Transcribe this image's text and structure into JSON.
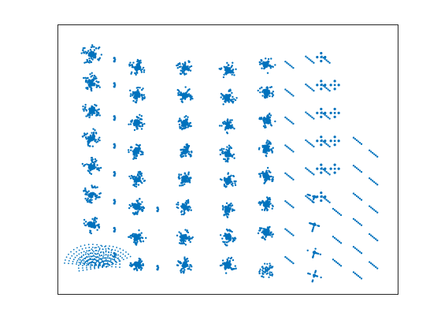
{
  "chart_data": {
    "type": "scatter",
    "title": "",
    "xlabel": "",
    "ylabel": "",
    "grid": false,
    "legend": "none",
    "marker_color": "#0072BD",
    "box_color": "#262626",
    "background": "#ffffff",
    "xlim": [
      0,
      100
    ],
    "ylim": [
      0,
      100
    ],
    "xticks": [],
    "yticks": [],
    "description_free": true,
    "clusters": [
      {
        "x": 10,
        "y": 92,
        "kind": "cross",
        "size": 1.2
      },
      {
        "x": 10,
        "y": 81,
        "kind": "cross",
        "size": 1.0
      },
      {
        "x": 10,
        "y": 70,
        "kind": "cross",
        "size": 1.0
      },
      {
        "x": 10,
        "y": 59,
        "kind": "cross",
        "size": 1.0
      },
      {
        "x": 10,
        "y": 48,
        "kind": "cross",
        "size": 1.0
      },
      {
        "x": 10,
        "y": 37,
        "kind": "cross",
        "size": 1.0
      },
      {
        "x": 10,
        "y": 25,
        "kind": "cross",
        "size": 1.0
      },
      {
        "x": 13,
        "y": 9,
        "kind": "fan",
        "size": 1.6
      },
      {
        "x": 20,
        "y": 90,
        "kind": "pair",
        "size": 0.5
      },
      {
        "x": 20,
        "y": 80,
        "kind": "pair",
        "size": 0.5
      },
      {
        "x": 20,
        "y": 67,
        "kind": "pair",
        "size": 0.5
      },
      {
        "x": 20,
        "y": 56,
        "kind": "pair",
        "size": 0.5
      },
      {
        "x": 20,
        "y": 45,
        "kind": "pair",
        "size": 0.5
      },
      {
        "x": 20,
        "y": 34,
        "kind": "pair",
        "size": 0.5
      },
      {
        "x": 20,
        "y": 23,
        "kind": "pair",
        "size": 0.5
      },
      {
        "x": 20,
        "y": 13,
        "kind": "pair",
        "size": 0.5
      },
      {
        "x": 30,
        "y": 87,
        "kind": "cross",
        "size": 0.9
      },
      {
        "x": 30,
        "y": 76,
        "kind": "cross",
        "size": 0.9
      },
      {
        "x": 30,
        "y": 65,
        "kind": "cross",
        "size": 0.9
      },
      {
        "x": 30,
        "y": 54,
        "kind": "cross",
        "size": 0.9
      },
      {
        "x": 30,
        "y": 43,
        "kind": "cross",
        "size": 0.9
      },
      {
        "x": 30,
        "y": 32,
        "kind": "cross",
        "size": 0.9
      },
      {
        "x": 30,
        "y": 20,
        "kind": "cross",
        "size": 0.9
      },
      {
        "x": 30,
        "y": 9,
        "kind": "cross",
        "size": 0.9
      },
      {
        "x": 39,
        "y": 31,
        "kind": "pair",
        "size": 0.5
      },
      {
        "x": 39,
        "y": 8,
        "kind": "pair",
        "size": 0.5
      },
      {
        "x": 51,
        "y": 87,
        "kind": "cross",
        "size": 0.9
      },
      {
        "x": 51,
        "y": 76,
        "kind": "cross",
        "size": 0.9
      },
      {
        "x": 51,
        "y": 65,
        "kind": "cross",
        "size": 0.9
      },
      {
        "x": 51,
        "y": 54,
        "kind": "cross",
        "size": 0.9
      },
      {
        "x": 51,
        "y": 43,
        "kind": "cross",
        "size": 0.9
      },
      {
        "x": 51,
        "y": 32,
        "kind": "cross",
        "size": 0.9
      },
      {
        "x": 51,
        "y": 20,
        "kind": "cross",
        "size": 0.9
      },
      {
        "x": 51,
        "y": 9,
        "kind": "cross",
        "size": 0.9
      },
      {
        "x": 70,
        "y": 86,
        "kind": "cross",
        "size": 0.9
      },
      {
        "x": 70,
        "y": 75,
        "kind": "cross",
        "size": 0.9
      },
      {
        "x": 70,
        "y": 64,
        "kind": "cross",
        "size": 0.9
      },
      {
        "x": 70,
        "y": 53,
        "kind": "cross",
        "size": 0.9
      },
      {
        "x": 70,
        "y": 42,
        "kind": "cross",
        "size": 0.9
      },
      {
        "x": 70,
        "y": 31,
        "kind": "cross",
        "size": 0.9
      },
      {
        "x": 70,
        "y": 20,
        "kind": "cross",
        "size": 0.9
      },
      {
        "x": 70,
        "y": 9,
        "kind": "cross",
        "size": 0.9
      },
      {
        "x": 87,
        "y": 88,
        "kind": "cross",
        "size": 0.9
      },
      {
        "x": 87,
        "y": 77,
        "kind": "cross",
        "size": 0.9
      },
      {
        "x": 87,
        "y": 66,
        "kind": "cross",
        "size": 0.9
      },
      {
        "x": 87,
        "y": 55,
        "kind": "cross",
        "size": 0.9
      },
      {
        "x": 87,
        "y": 44,
        "kind": "cross",
        "size": 0.9
      },
      {
        "x": 87,
        "y": 33,
        "kind": "cross",
        "size": 0.9
      },
      {
        "x": 87,
        "y": 22,
        "kind": "cross",
        "size": 0.9
      },
      {
        "x": 87,
        "y": 7,
        "kind": "ring",
        "size": 1.0
      }
    ],
    "dash_columns": [
      {
        "x": 97,
        "ys": [
          88,
          77,
          66,
          55,
          44,
          33,
          22,
          11
        ],
        "kind": "dash"
      },
      {
        "x": 106,
        "ys": [
          90,
          79,
          68,
          57,
          46,
          35
        ],
        "kind": "dash"
      },
      {
        "x": 113,
        "ys": [
          90,
          79,
          68,
          57,
          46,
          35
        ],
        "kind": "dash"
      },
      {
        "x": 111,
        "ys": [
          91,
          80,
          69,
          58,
          47,
          36
        ],
        "kind": "diamond"
      },
      {
        "x": 117,
        "ys": [
          80,
          69,
          58,
          47
        ],
        "kind": "diamond"
      },
      {
        "x": 108,
        "ys": [
          36,
          25,
          14,
          5
        ],
        "kind": "cross_small"
      },
      {
        "x": 118,
        "ys": [
          30,
          19,
          10
        ],
        "kind": "dash"
      },
      {
        "x": 127,
        "ys": [
          58,
          47,
          36,
          26,
          15,
          5
        ],
        "kind": "dash"
      },
      {
        "x": 134,
        "ys": [
          53,
          42,
          31,
          20,
          9
        ],
        "kind": "dash"
      }
    ]
  }
}
